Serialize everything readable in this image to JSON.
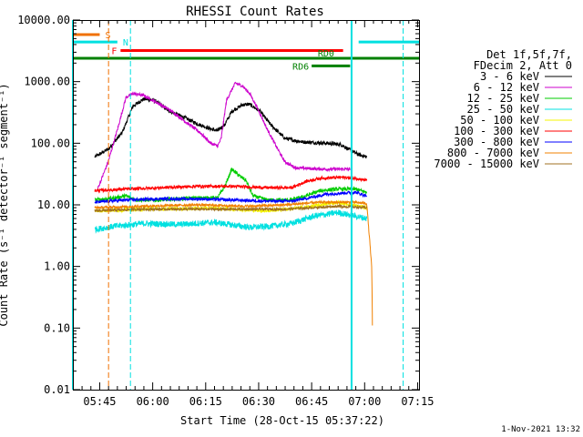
{
  "chart_data": {
    "type": "line",
    "title": "RHESSI Count Rates",
    "xlabel": "Start Time (28-Oct-15 05:37:22)",
    "ylabel": "Count Rate (s⁻¹ detector⁻¹ segment⁻¹)",
    "y_scale": "log",
    "ylim": [
      0.01,
      10000
    ],
    "y_ticks": [
      "0.01",
      "0.10",
      "1.00",
      "10.00",
      "100.00",
      "1000.00",
      "10000.00"
    ],
    "x_range_minutes": [
      0,
      98
    ],
    "x_ticks": [
      {
        "label": "05:45",
        "minute": 7.6
      },
      {
        "label": "06:00",
        "minute": 22.6
      },
      {
        "label": "06:15",
        "minute": 37.6
      },
      {
        "label": "06:30",
        "minute": 52.6
      },
      {
        "label": "06:45",
        "minute": 67.6
      },
      {
        "label": "07:00",
        "minute": 82.6
      },
      {
        "label": "07:15",
        "minute": 97.6
      }
    ],
    "grid": false,
    "legend_position": "right",
    "legend_header": [
      "Det 1f,5f,7f,",
      "FDecim 2, Att 0"
    ],
    "series": [
      {
        "name": "3 - 6 keV",
        "color": "#000000",
        "start": 6.2,
        "end": 83.2,
        "noise": 0.03,
        "points": [
          [
            6.2,
            60
          ],
          [
            10,
            80
          ],
          [
            14,
            150
          ],
          [
            17,
            400
          ],
          [
            20,
            520
          ],
          [
            23,
            500
          ],
          [
            27,
            340
          ],
          [
            31,
            270
          ],
          [
            35,
            210
          ],
          [
            39,
            170
          ],
          [
            41,
            160
          ],
          [
            43,
            200
          ],
          [
            45,
            330
          ],
          [
            48,
            420
          ],
          [
            50,
            430
          ],
          [
            53,
            330
          ],
          [
            56,
            200
          ],
          [
            60,
            120
          ],
          [
            65,
            105
          ],
          [
            72,
            100
          ],
          [
            76,
            95
          ],
          [
            78,
            80
          ],
          [
            81,
            65
          ],
          [
            83.2,
            60
          ]
        ]
      },
      {
        "name": "6 - 12 keV",
        "color": "#cc00cc",
        "start": 7,
        "end": 78.5,
        "noise": 0.025,
        "points": [
          [
            7,
            18
          ],
          [
            10,
            50
          ],
          [
            13,
            200
          ],
          [
            15,
            550
          ],
          [
            17,
            640
          ],
          [
            20,
            600
          ],
          [
            24,
            450
          ],
          [
            28,
            330
          ],
          [
            32,
            220
          ],
          [
            36,
            150
          ],
          [
            39,
            100
          ],
          [
            41,
            90
          ],
          [
            42,
            120
          ],
          [
            43.5,
            500
          ],
          [
            46,
            950
          ],
          [
            48,
            850
          ],
          [
            50,
            650
          ],
          [
            52,
            400
          ],
          [
            55,
            170
          ],
          [
            58,
            80
          ],
          [
            60,
            50
          ],
          [
            63,
            40
          ],
          [
            70,
            38
          ],
          [
            78.5,
            38
          ]
        ]
      },
      {
        "name": "12 - 25 keV",
        "color": "#00cc00",
        "start": 6.2,
        "end": 83.2,
        "noise": 0.03,
        "points": [
          [
            6.2,
            12
          ],
          [
            12,
            13
          ],
          [
            15,
            14
          ],
          [
            18,
            12
          ],
          [
            25,
            12
          ],
          [
            35,
            13
          ],
          [
            41,
            13
          ],
          [
            43,
            20
          ],
          [
            45,
            38
          ],
          [
            47,
            30
          ],
          [
            49,
            25
          ],
          [
            51,
            14
          ],
          [
            55,
            12
          ],
          [
            62,
            12
          ],
          [
            66,
            14
          ],
          [
            70,
            17
          ],
          [
            75,
            18
          ],
          [
            80,
            18
          ],
          [
            83.2,
            16
          ]
        ]
      },
      {
        "name": "25 - 50 keV",
        "color": "#00e0e0",
        "start": 6.2,
        "end": 83.2,
        "noise": 0.05,
        "points": [
          [
            6.2,
            4
          ],
          [
            12,
            4.5
          ],
          [
            20,
            5
          ],
          [
            30,
            4.8
          ],
          [
            40,
            5.2
          ],
          [
            50,
            4.3
          ],
          [
            56,
            4.5
          ],
          [
            62,
            5
          ],
          [
            68,
            6.5
          ],
          [
            75,
            7.5
          ],
          [
            83.2,
            6
          ]
        ]
      },
      {
        "name": "50 - 100 keV",
        "color": "#f5f500",
        "start": 6.2,
        "end": 83.2,
        "noise": 0.03,
        "points": [
          [
            6.2,
            8
          ],
          [
            20,
            8.5
          ],
          [
            40,
            8.8
          ],
          [
            55,
            8
          ],
          [
            65,
            9
          ],
          [
            75,
            11
          ],
          [
            83.2,
            9
          ]
        ]
      },
      {
        "name": "100 - 300 keV",
        "color": "#ff0000",
        "start": 6.2,
        "end": 83.2,
        "noise": 0.025,
        "points": [
          [
            6.2,
            17
          ],
          [
            15,
            18
          ],
          [
            25,
            19
          ],
          [
            35,
            20
          ],
          [
            45,
            20
          ],
          [
            55,
            19
          ],
          [
            62,
            19
          ],
          [
            66,
            24
          ],
          [
            70,
            27
          ],
          [
            76,
            28
          ],
          [
            80,
            27
          ],
          [
            83.2,
            25
          ]
        ]
      },
      {
        "name": "300 - 800 keV",
        "color": "#0000ff",
        "start": 6.2,
        "end": 83.2,
        "noise": 0.025,
        "points": [
          [
            6.2,
            11
          ],
          [
            15,
            12
          ],
          [
            25,
            12.5
          ],
          [
            35,
            12.5
          ],
          [
            45,
            12
          ],
          [
            55,
            11.5
          ],
          [
            62,
            11.5
          ],
          [
            67,
            13
          ],
          [
            72,
            15
          ],
          [
            80,
            16
          ],
          [
            83.2,
            14
          ]
        ]
      },
      {
        "name": "800 - 7000 keV",
        "color": "#f08000",
        "start": 6.2,
        "end": 84.8,
        "noise": 0.02,
        "points": [
          [
            6.2,
            9
          ],
          [
            20,
            9.5
          ],
          [
            35,
            10
          ],
          [
            50,
            9.5
          ],
          [
            60,
            10
          ],
          [
            70,
            11
          ],
          [
            80,
            11
          ],
          [
            83.2,
            10.5
          ],
          [
            84.6,
            1
          ],
          [
            84.8,
            0.11
          ]
        ]
      },
      {
        "name": "7000 - 15000 keV",
        "color": "#a07020",
        "start": 6.2,
        "end": 83.2,
        "noise": 0.02,
        "points": [
          [
            6.2,
            8
          ],
          [
            20,
            8.5
          ],
          [
            40,
            8.5
          ],
          [
            60,
            8.5
          ],
          [
            75,
            9.5
          ],
          [
            83.2,
            9
          ]
        ]
      }
    ],
    "flag_bars": [
      {
        "label": "S",
        "color": "#f07000",
        "segments": [
          [
            0,
            7.6
          ]
        ],
        "level": 5800
      },
      {
        "label": "N",
        "color": "#00e0e0",
        "segments": [
          [
            0,
            12.6
          ],
          [
            80.9,
            98
          ]
        ],
        "level": 4400
      },
      {
        "label": "F",
        "color": "#ff0000",
        "segments": [
          [
            13.5,
            76.5
          ]
        ],
        "level": 3200
      },
      {
        "label": "RD0",
        "color": "#008000",
        "segments": [
          [
            0,
            98
          ]
        ],
        "level": 2400
      },
      {
        "label": "RD6",
        "color": "#008000",
        "segments": [
          [
            67.6,
            78.5
          ]
        ],
        "level": 1800
      }
    ],
    "vertical_markers": [
      {
        "color": "#00e0e0",
        "style": "solid",
        "minute": 0
      },
      {
        "color": "#f07000",
        "style": "dashed",
        "minute": 10.1
      },
      {
        "color": "#00e0e0",
        "style": "dashed",
        "minute": 16.3
      },
      {
        "color": "#00e0e0",
        "style": "solid",
        "minute": 78.9
      },
      {
        "color": "#00e0e0",
        "style": "dashed",
        "minute": 93.5
      }
    ]
  },
  "footer_date": "1-Nov-2021 13:32"
}
